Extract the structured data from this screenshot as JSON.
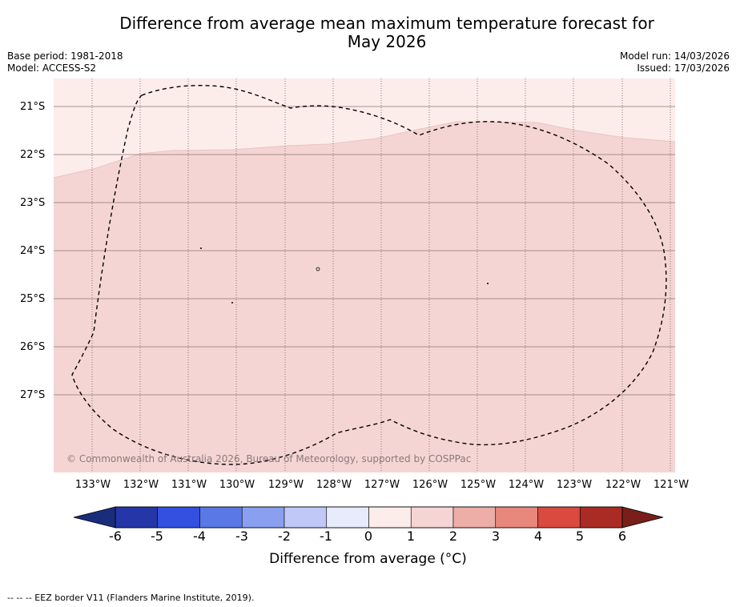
{
  "title_line1": "Difference from average mean maximum temperature forecast for",
  "title_line2": "May 2026",
  "base_period": "Base period: 1981-2018",
  "model": "Model: ACCESS-S2",
  "model_run": "Model run: 14/03/2026",
  "issued": "Issued: 17/03/2026",
  "copyright": "© Commonwealth of Australia 2026, Bureau of Meteorology, supported by COSPPac",
  "lat_labels": [
    "21°S",
    "22°S",
    "23°S",
    "24°S",
    "25°S",
    "26°S",
    "27°S"
  ],
  "lon_labels": [
    "133°W",
    "132°W",
    "131°W",
    "130°W",
    "129°W",
    "128°W",
    "127°W",
    "126°W",
    "125°W",
    "124°W",
    "123°W",
    "122°W",
    "121°W"
  ],
  "colorbar": {
    "label": "Difference from average (°C)",
    "ticks": [
      "-6",
      "-5",
      "-4",
      "-3",
      "-2",
      "-1",
      "0",
      "1",
      "2",
      "3",
      "4",
      "5",
      "6"
    ],
    "colors": [
      "#2436a8",
      "#3350e0",
      "#5a78e6",
      "#8a9ff0",
      "#c0c8f8",
      "#e8ebfb",
      "#fcecea",
      "#f5d5d4",
      "#edaea8",
      "#e8877c",
      "#da4a3e",
      "#aa2b24"
    ],
    "low_extend_color": "#1a2d7c",
    "high_extend_color": "#7a1e1a"
  },
  "map": {
    "zone_colors": {
      "0_to_1": "#fcecea",
      "1_to_2": "#f5d5d4"
    }
  },
  "footer": "--  --  -- EEZ border V11 (Flanders Marine Institute, 2019)."
}
